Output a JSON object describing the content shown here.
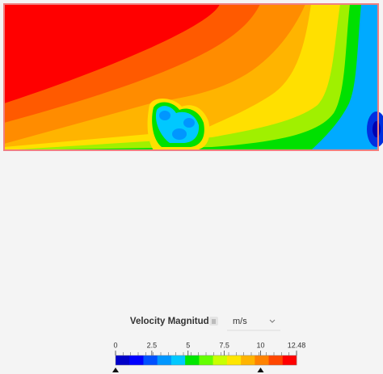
{
  "legend": {
    "title": "Velocity Magnitude",
    "unit": "m/s",
    "colorbar": {
      "lim": [
        0,
        12.48
      ],
      "ticks": [
        0,
        2.5,
        5,
        7.5,
        10,
        12.48
      ],
      "colors": [
        "#0000c8",
        "#0000ff",
        "#0050ff",
        "#0096ff",
        "#00c8ff",
        "#00e600",
        "#64ff00",
        "#c8ff00",
        "#ffe600",
        "#ffb400",
        "#ff8200",
        "#ff4600",
        "#ff0000"
      ],
      "handles": [
        0,
        10
      ]
    }
  }
}
